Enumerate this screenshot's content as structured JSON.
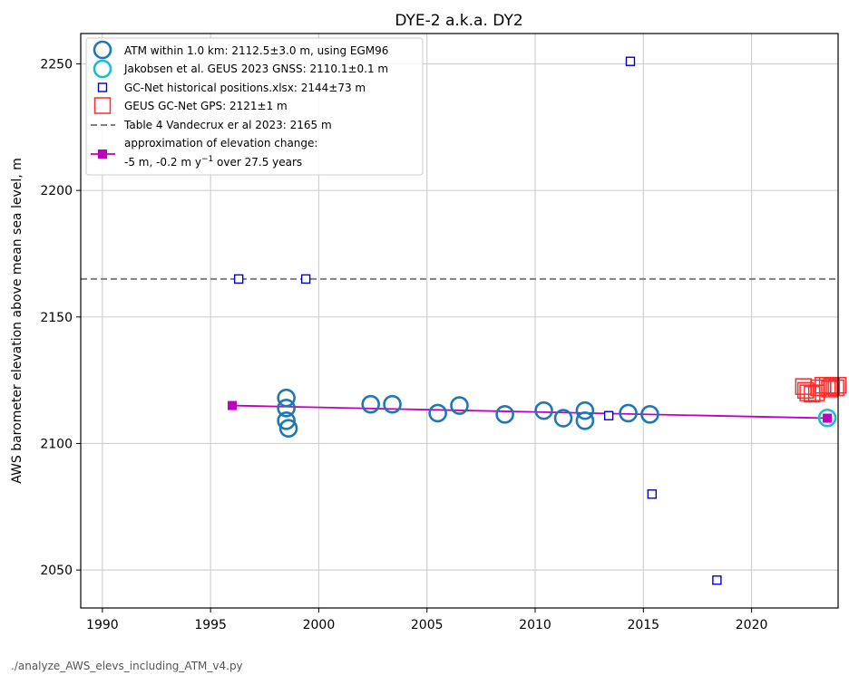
{
  "chart_data": {
    "type": "scatter",
    "title": "DYE-2 a.k.a. DY2",
    "xlabel": "",
    "ylabel": "AWS barometer elevation above mean sea level, m",
    "xlim": [
      1989,
      2024
    ],
    "ylim": [
      2035,
      2262
    ],
    "xticks": [
      1990,
      1995,
      2000,
      2005,
      2010,
      2015,
      2020
    ],
    "yticks": [
      2050,
      2100,
      2150,
      2200,
      2250
    ],
    "grid": true,
    "legend_position": "top-left",
    "series": [
      {
        "name": "ATM within 1.0 km: 2112.5±3.0 m, using EGM96",
        "marker": "circle-open",
        "color": "#1f77b4",
        "points": [
          {
            "x": 1998.5,
            "y": 2118
          },
          {
            "x": 1998.5,
            "y": 2114
          },
          {
            "x": 1998.5,
            "y": 2109
          },
          {
            "x": 1998.6,
            "y": 2106
          },
          {
            "x": 2002.4,
            "y": 2115.5
          },
          {
            "x": 2003.4,
            "y": 2115.5
          },
          {
            "x": 2005.5,
            "y": 2112
          },
          {
            "x": 2006.5,
            "y": 2115
          },
          {
            "x": 2008.6,
            "y": 2111.5
          },
          {
            "x": 2010.4,
            "y": 2113
          },
          {
            "x": 2011.3,
            "y": 2110
          },
          {
            "x": 2012.3,
            "y": 2113
          },
          {
            "x": 2012.3,
            "y": 2109
          },
          {
            "x": 2014.3,
            "y": 2112
          },
          {
            "x": 2015.3,
            "y": 2111.5
          }
        ]
      },
      {
        "name": "Jakobsen et al. GEUS 2023 GNSS: 2110.1±0.1 m",
        "marker": "circle-open",
        "color": "#17becf",
        "points": [
          {
            "x": 2023.5,
            "y": 2110.1
          }
        ]
      },
      {
        "name": "GC-Net historical positions.xlsx: 2144±73 m",
        "marker": "square-open-small",
        "color": "#0000cc",
        "points": [
          {
            "x": 1996.3,
            "y": 2165
          },
          {
            "x": 1999.4,
            "y": 2165
          },
          {
            "x": 2014.4,
            "y": 2251
          },
          {
            "x": 2013.4,
            "y": 2111
          },
          {
            "x": 2015.4,
            "y": 2080
          },
          {
            "x": 2018.4,
            "y": 2046
          }
        ]
      },
      {
        "name": "GEUS GC-Net GPS: 2121±1 m",
        "marker": "square-open-large",
        "color": "#ff2a2a",
        "points": [
          {
            "x": 2022.4,
            "y": 2122.5
          },
          {
            "x": 2022.5,
            "y": 2121
          },
          {
            "x": 2022.6,
            "y": 2120
          },
          {
            "x": 2022.8,
            "y": 2119.5
          },
          {
            "x": 2023.0,
            "y": 2120
          },
          {
            "x": 2023.1,
            "y": 2122
          },
          {
            "x": 2023.3,
            "y": 2123
          },
          {
            "x": 2023.5,
            "y": 2123
          },
          {
            "x": 2023.6,
            "y": 2121.5
          },
          {
            "x": 2023.7,
            "y": 2122.5
          },
          {
            "x": 2023.9,
            "y": 2122
          },
          {
            "x": 2024.0,
            "y": 2123
          }
        ]
      },
      {
        "name": "Table 4 Vandecrux er al 2023: 2165 m",
        "marker": "dashed-line",
        "color": "#808080",
        "y": 2165
      },
      {
        "name_line1": "approximation of elevation change:",
        "name_line2_pre": "-5 m, -0.2 m y",
        "name_line2_sup": "−1",
        "name_line2_post": " over 27.5 years",
        "marker": "line-square-filled",
        "color": "#bf00bf",
        "points": [
          {
            "x": 1996.0,
            "y": 2115
          },
          {
            "x": 2023.5,
            "y": 2110
          }
        ]
      }
    ]
  },
  "footer": {
    "script_name": "./analyze_AWS_elevs_including_ATM_v4.py"
  }
}
